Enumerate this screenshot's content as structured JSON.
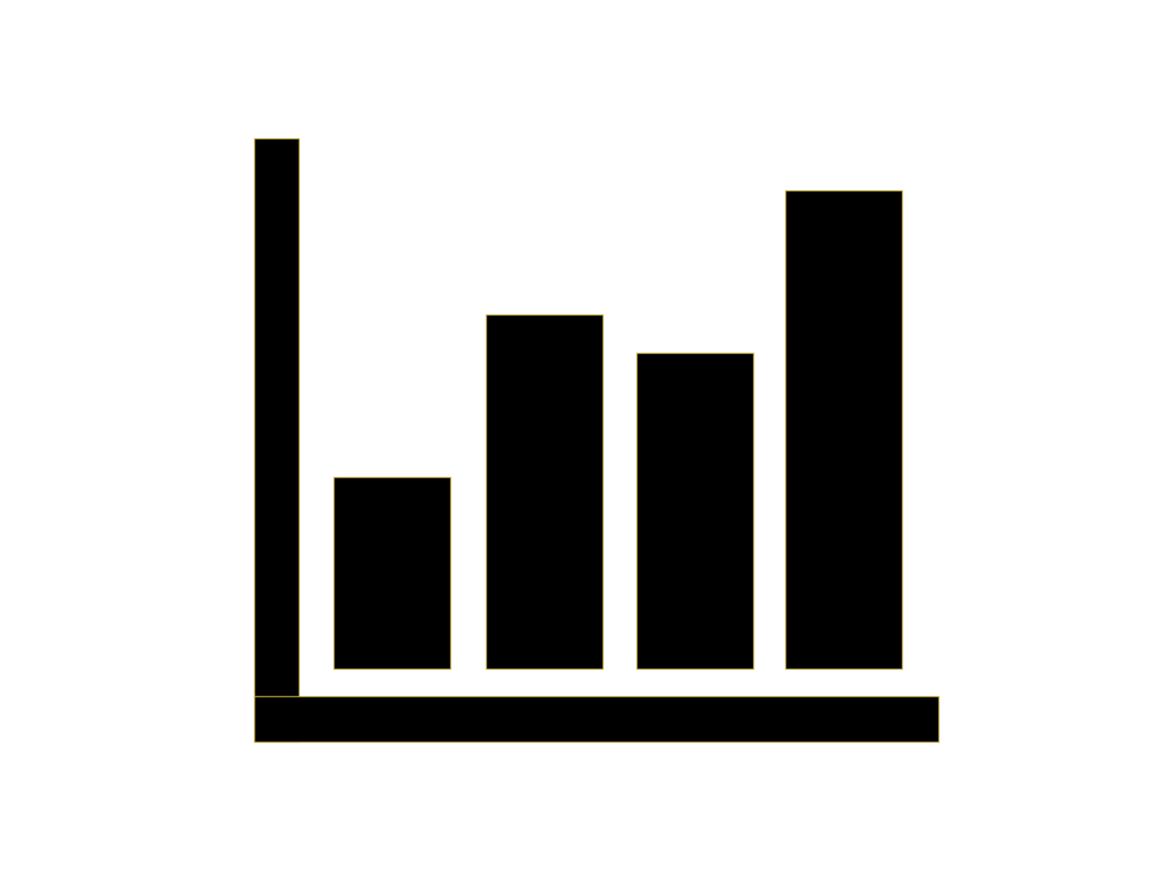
{
  "icon": {
    "name": "bar-chart-icon",
    "fill_color": "#000000",
    "edge_color": "#c8b04a",
    "background_color": "#ffffff",
    "bars": [
      {
        "level": 0.4
      },
      {
        "level": 0.74
      },
      {
        "level": 0.66
      },
      {
        "level": 1.0
      }
    ]
  }
}
